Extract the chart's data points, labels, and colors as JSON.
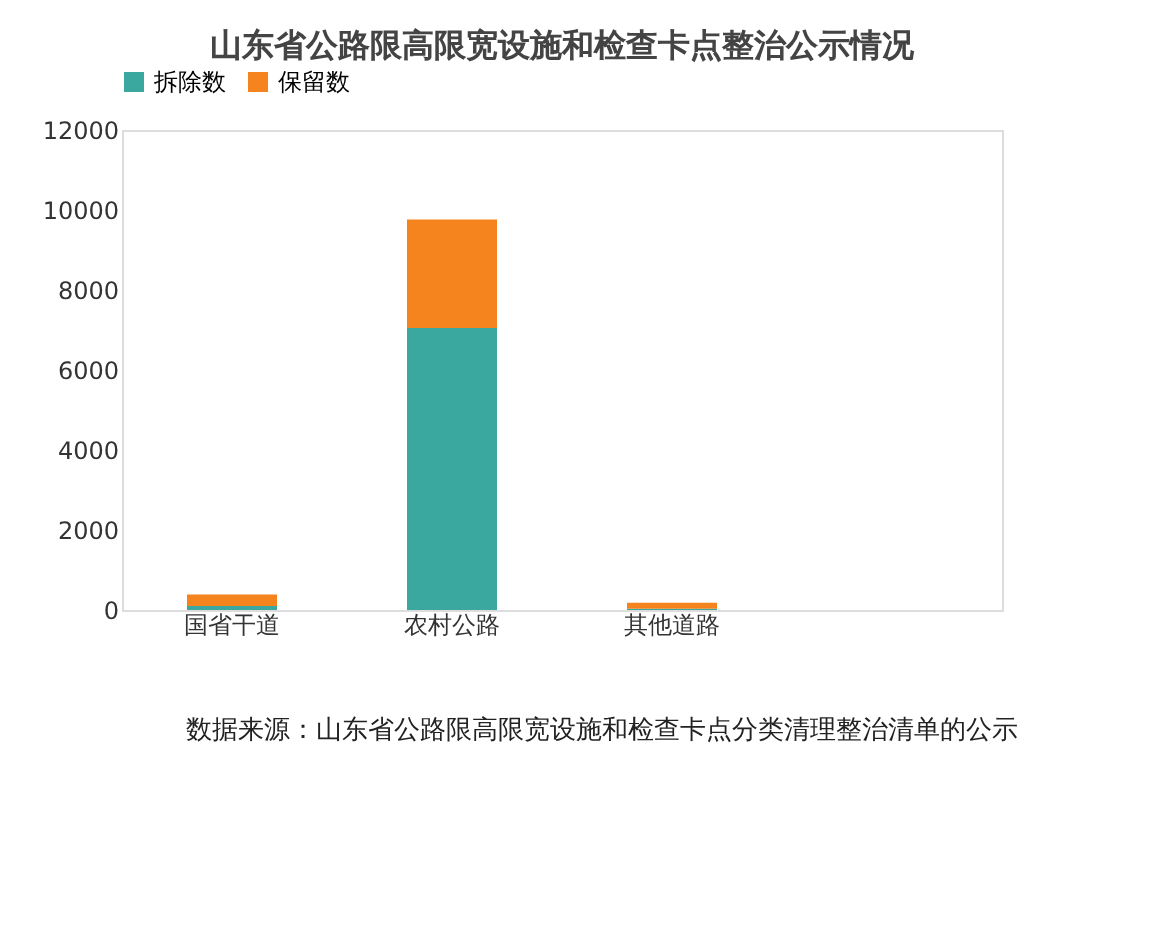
{
  "chart_data": {
    "type": "bar",
    "title": "山东省公路限高限宽设施和检查卡点整治公示情况",
    "categories": [
      "国省干道",
      "农村公路",
      "其他道路",
      null
    ],
    "series": [
      {
        "name": "拆除数",
        "color": "#3aa89e",
        "values": [
          100,
          7050,
          30,
          null
        ]
      },
      {
        "name": "保留数",
        "color": "#f5841f",
        "values": [
          290,
          2710,
          150,
          null
        ]
      }
    ],
    "stacked": true,
    "ylim": [
      0,
      12000
    ],
    "yticks": [
      0,
      2000,
      4000,
      6000,
      8000,
      10000,
      12000
    ],
    "grid": false,
    "legend": "top",
    "annotations": [
      "数据来源：山东省公路限高限宽设施和检查卡点分类清理整治清单的公示"
    ]
  }
}
